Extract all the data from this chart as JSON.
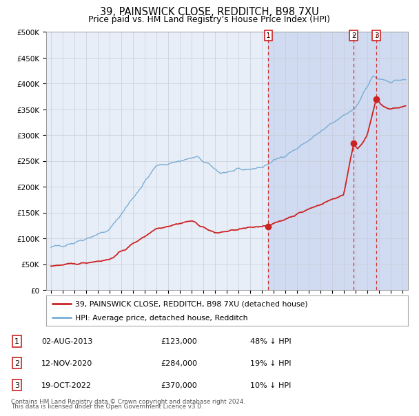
{
  "title": "39, PAINSWICK CLOSE, REDDITCH, B98 7XU",
  "subtitle": "Price paid vs. HM Land Registry’s House Price Index (HPI)",
  "ylim": [
    0,
    500000
  ],
  "yticks": [
    0,
    50000,
    100000,
    150000,
    200000,
    250000,
    300000,
    350000,
    400000,
    450000,
    500000
  ],
  "ytick_labels": [
    "£0",
    "£50K",
    "£100K",
    "£150K",
    "£200K",
    "£250K",
    "£300K",
    "£350K",
    "£400K",
    "£450K",
    "£500K"
  ],
  "hpi_color": "#7aadd4",
  "price_color": "#cc2222",
  "marker_color": "#cc2222",
  "vline_color": "#cc3333",
  "background_color": "#ffffff",
  "plot_bg_color": "#e8eef8",
  "grid_color": "#c8cdd8",
  "legend_border_color": "#aaaaaa",
  "shade_color": "#d0daf0",
  "transactions": [
    {
      "label": "1",
      "date_x": 2013.58,
      "price": 123000,
      "date_str": "02-AUG-2013",
      "price_str": "£123,000",
      "hpi_str": "48% ↓ HPI"
    },
    {
      "label": "2",
      "date_x": 2020.87,
      "price": 284000,
      "date_str": "12-NOV-2020",
      "price_str": "£284,000",
      "hpi_str": "19% ↓ HPI"
    },
    {
      "label": "3",
      "date_x": 2022.8,
      "price": 370000,
      "date_str": "19-OCT-2022",
      "price_str": "£370,000",
      "hpi_str": "10% ↓ HPI"
    }
  ],
  "footer_line1": "Contains HM Land Registry data © Crown copyright and database right 2024.",
  "footer_line2": "This data is licensed under the Open Government Licence v3.0.",
  "legend_line1": "39, PAINSWICK CLOSE, REDDITCH, B98 7XU (detached house)",
  "legend_line2": "HPI: Average price, detached house, Redditch",
  "xlim_lo": 1994.6,
  "xlim_hi": 2025.5,
  "xstart": 1995,
  "xend": 2026
}
